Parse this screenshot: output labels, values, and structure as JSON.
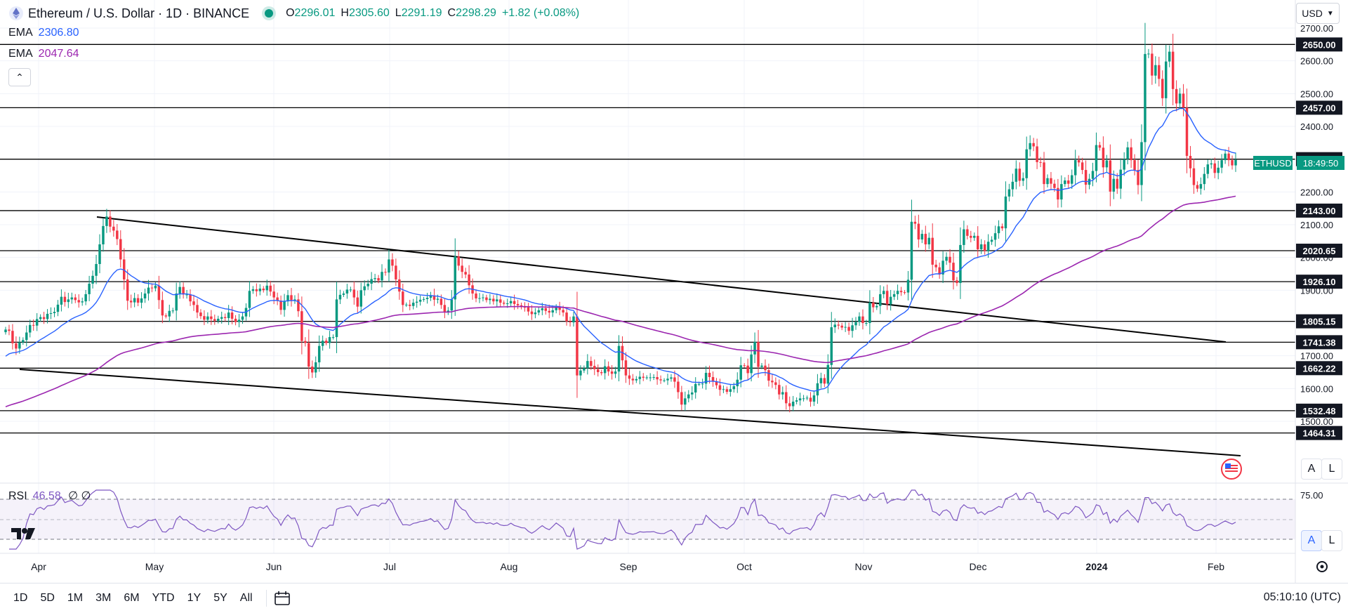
{
  "header": {
    "title": "Ethereum / U.S. Dollar · 1D · BINANCE",
    "open_label": "O",
    "open": "2296.01",
    "high_label": "H",
    "high": "2305.60",
    "low_label": "L",
    "low": "2291.19",
    "close_label": "C",
    "close": "2298.29",
    "change": "+1.82 (+0.08%)"
  },
  "indicators": {
    "ema_fast": {
      "label": "EMA",
      "value": "2306.80",
      "color": "#2962ff"
    },
    "ema_slow": {
      "label": "EMA",
      "value": "2047.64",
      "color": "#9c27b0"
    },
    "rsi": {
      "label": "RSI",
      "value": "46.58",
      "extra": "∅ ∅",
      "color": "#7e57c2"
    }
  },
  "currency": "USD",
  "symbol_tag": {
    "symbol": "ETHUSD",
    "countdown": "18:49:50"
  },
  "colors": {
    "up": "#089981",
    "down": "#f23645",
    "grid": "#f0f3fa",
    "line": "#000000"
  },
  "icons": [
    "ethereum-icon",
    "market-open-icon",
    "chevron-up-icon",
    "chevron-down-icon",
    "flag-us-icon",
    "settings-gear-icon",
    "calendar-range-icon",
    "tradingview-logo"
  ],
  "chart_data": {
    "type": "candlestick",
    "y_axis": {
      "min": 1400,
      "max": 2720,
      "ticks": [
        "1500.00",
        "1600.00",
        "1700.00",
        "1800.00",
        "1900.00",
        "2000.00",
        "2100.00",
        "2200.00",
        "2300.00",
        "2400.00",
        "2500.00",
        "2600.00",
        "2700.00"
      ]
    },
    "x_axis": {
      "ticks": [
        "Apr",
        "May",
        "Jun",
        "Jul",
        "Aug",
        "Sep",
        "Oct",
        "Nov",
        "Dec",
        "2024",
        "Feb"
      ]
    },
    "horizontal_levels": [
      "2650.00",
      "2457.00",
      "2300.00",
      "2143.00",
      "2020.65",
      "1926.10",
      "1805.15",
      "1741.38",
      "1662.22",
      "1532.48",
      "1464.31"
    ],
    "last_price": 2298.29,
    "closes": [
      1780,
      1776,
      1738,
      1722,
      1741,
      1748,
      1771,
      1794,
      1792,
      1812,
      1818,
      1812,
      1828,
      1830,
      1834,
      1856,
      1880,
      1864,
      1872,
      1878,
      1870,
      1863,
      1866,
      1888,
      1920,
      1944,
      1980,
      2040,
      2096,
      2125,
      2094,
      2082,
      2056,
      1994,
      1933,
      1868,
      1863,
      1876,
      1862,
      1875,
      1890,
      1908,
      1906,
      1914,
      1870,
      1823,
      1820,
      1837,
      1838,
      1890,
      1910,
      1887,
      1887,
      1866,
      1855,
      1832,
      1821,
      1810,
      1820,
      1812,
      1807,
      1813,
      1818,
      1815,
      1832,
      1813,
      1803,
      1810,
      1820,
      1846,
      1898,
      1903,
      1897,
      1905,
      1900,
      1914,
      1896,
      1878,
      1868,
      1840,
      1866,
      1885,
      1870,
      1872,
      1836,
      1745,
      1739,
      1667,
      1649,
      1680,
      1730,
      1746,
      1739,
      1757,
      1757,
      1872,
      1886,
      1890,
      1902,
      1902,
      1878,
      1850,
      1900,
      1912,
      1920,
      1934,
      1937,
      1930,
      1956,
      1954,
      1994,
      1975,
      1933,
      1896,
      1855,
      1856,
      1852,
      1862,
      1865,
      1871,
      1873,
      1877,
      1884,
      1871,
      1874,
      1855,
      1834,
      1838,
      1872,
      2003,
      1975,
      1956,
      1948,
      1915,
      1890,
      1875,
      1876,
      1878,
      1870,
      1874,
      1866,
      1872,
      1862,
      1859,
      1860,
      1867,
      1858,
      1854,
      1849,
      1848,
      1835,
      1827,
      1832,
      1839,
      1845,
      1837,
      1832,
      1839,
      1847,
      1840,
      1832,
      1805,
      1802,
      1820,
      1640,
      1655,
      1662,
      1684,
      1669,
      1659,
      1650,
      1647,
      1668,
      1652,
      1645,
      1652,
      1730,
      1686,
      1640,
      1630,
      1625,
      1629,
      1636,
      1633,
      1634,
      1634,
      1635,
      1628,
      1625,
      1625,
      1630,
      1634,
      1621,
      1589,
      1551,
      1570,
      1582,
      1588,
      1614,
      1614,
      1615,
      1648,
      1635,
      1621,
      1610,
      1596,
      1598,
      1590,
      1598,
      1607,
      1627,
      1671,
      1670,
      1647,
      1704,
      1742,
      1666,
      1670,
      1656,
      1624,
      1619,
      1611,
      1582,
      1589,
      1555,
      1546,
      1560,
      1564,
      1570,
      1570,
      1572,
      1560,
      1579,
      1616,
      1632,
      1615,
      1672,
      1787,
      1795,
      1792,
      1786,
      1788,
      1776,
      1793,
      1803,
      1820,
      1800,
      1800,
      1862,
      1848,
      1852,
      1888,
      1898,
      1857,
      1880,
      1888,
      1898,
      1894,
      1893,
      1932,
      2109,
      2103,
      2055,
      2072,
      2040,
      2060,
      1978,
      1970,
      1948,
      1990,
      2002,
      1984,
      1930,
      1922,
      2038,
      2086,
      2066,
      2060,
      2066,
      2025,
      2040,
      2020,
      2048,
      2054,
      2074,
      2095,
      2089,
      2186,
      2208,
      2231,
      2271,
      2234,
      2242,
      2330,
      2349,
      2339,
      2291,
      2290,
      2224,
      2242,
      2225,
      2212,
      2177,
      2224,
      2235,
      2225,
      2251,
      2297,
      2290,
      2267,
      2222,
      2240,
      2264,
      2343,
      2335,
      2275,
      2296,
      2201,
      2240,
      2210,
      2268,
      2300,
      2336,
      2297,
      2267,
      2221,
      2352,
      2621,
      2622,
      2555,
      2587,
      2545,
      2486,
      2598,
      2628,
      2514,
      2470,
      2500,
      2457,
      2310,
      2272,
      2221,
      2210,
      2224,
      2255,
      2284,
      2287,
      2258,
      2274,
      2297,
      2317,
      2297,
      2281,
      2298
    ]
  }
}
